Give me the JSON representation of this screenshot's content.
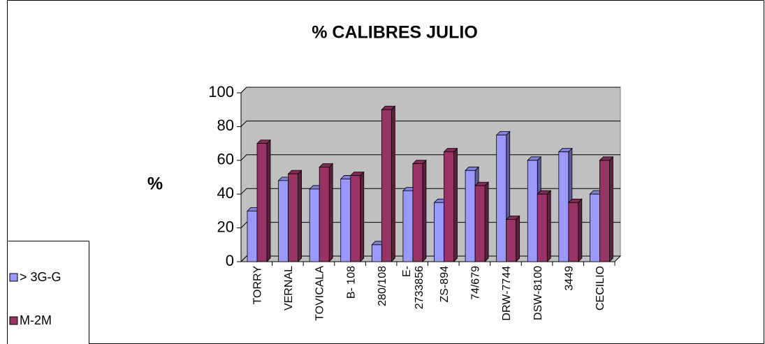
{
  "chart_data": {
    "type": "bar",
    "title": "% CALIBRES JULIO",
    "y_label": "%",
    "categories": [
      "TORRY",
      "VERNAL",
      "TOVICALA",
      "B- 108",
      "280/108",
      "E-\n2733856",
      "ZS-894",
      "74/679",
      "DRW-7744",
      "DSW-8100",
      "3449",
      "CECILIO"
    ],
    "series": [
      {
        "name": "> 3G-G",
        "color": "#9999ff",
        "values": [
          30,
          48,
          43,
          49,
          10,
          42,
          35,
          54,
          75,
          60,
          65,
          40
        ]
      },
      {
        "name": "M-2M",
        "color": "#993366",
        "values": [
          70,
          52,
          56,
          51,
          90,
          58,
          65,
          45,
          25,
          40,
          35,
          60
        ]
      }
    ],
    "ylim": [
      0,
      100
    ],
    "yticks": [
      0,
      20,
      40,
      60,
      80,
      100
    ],
    "grid": true,
    "legend": "left"
  }
}
